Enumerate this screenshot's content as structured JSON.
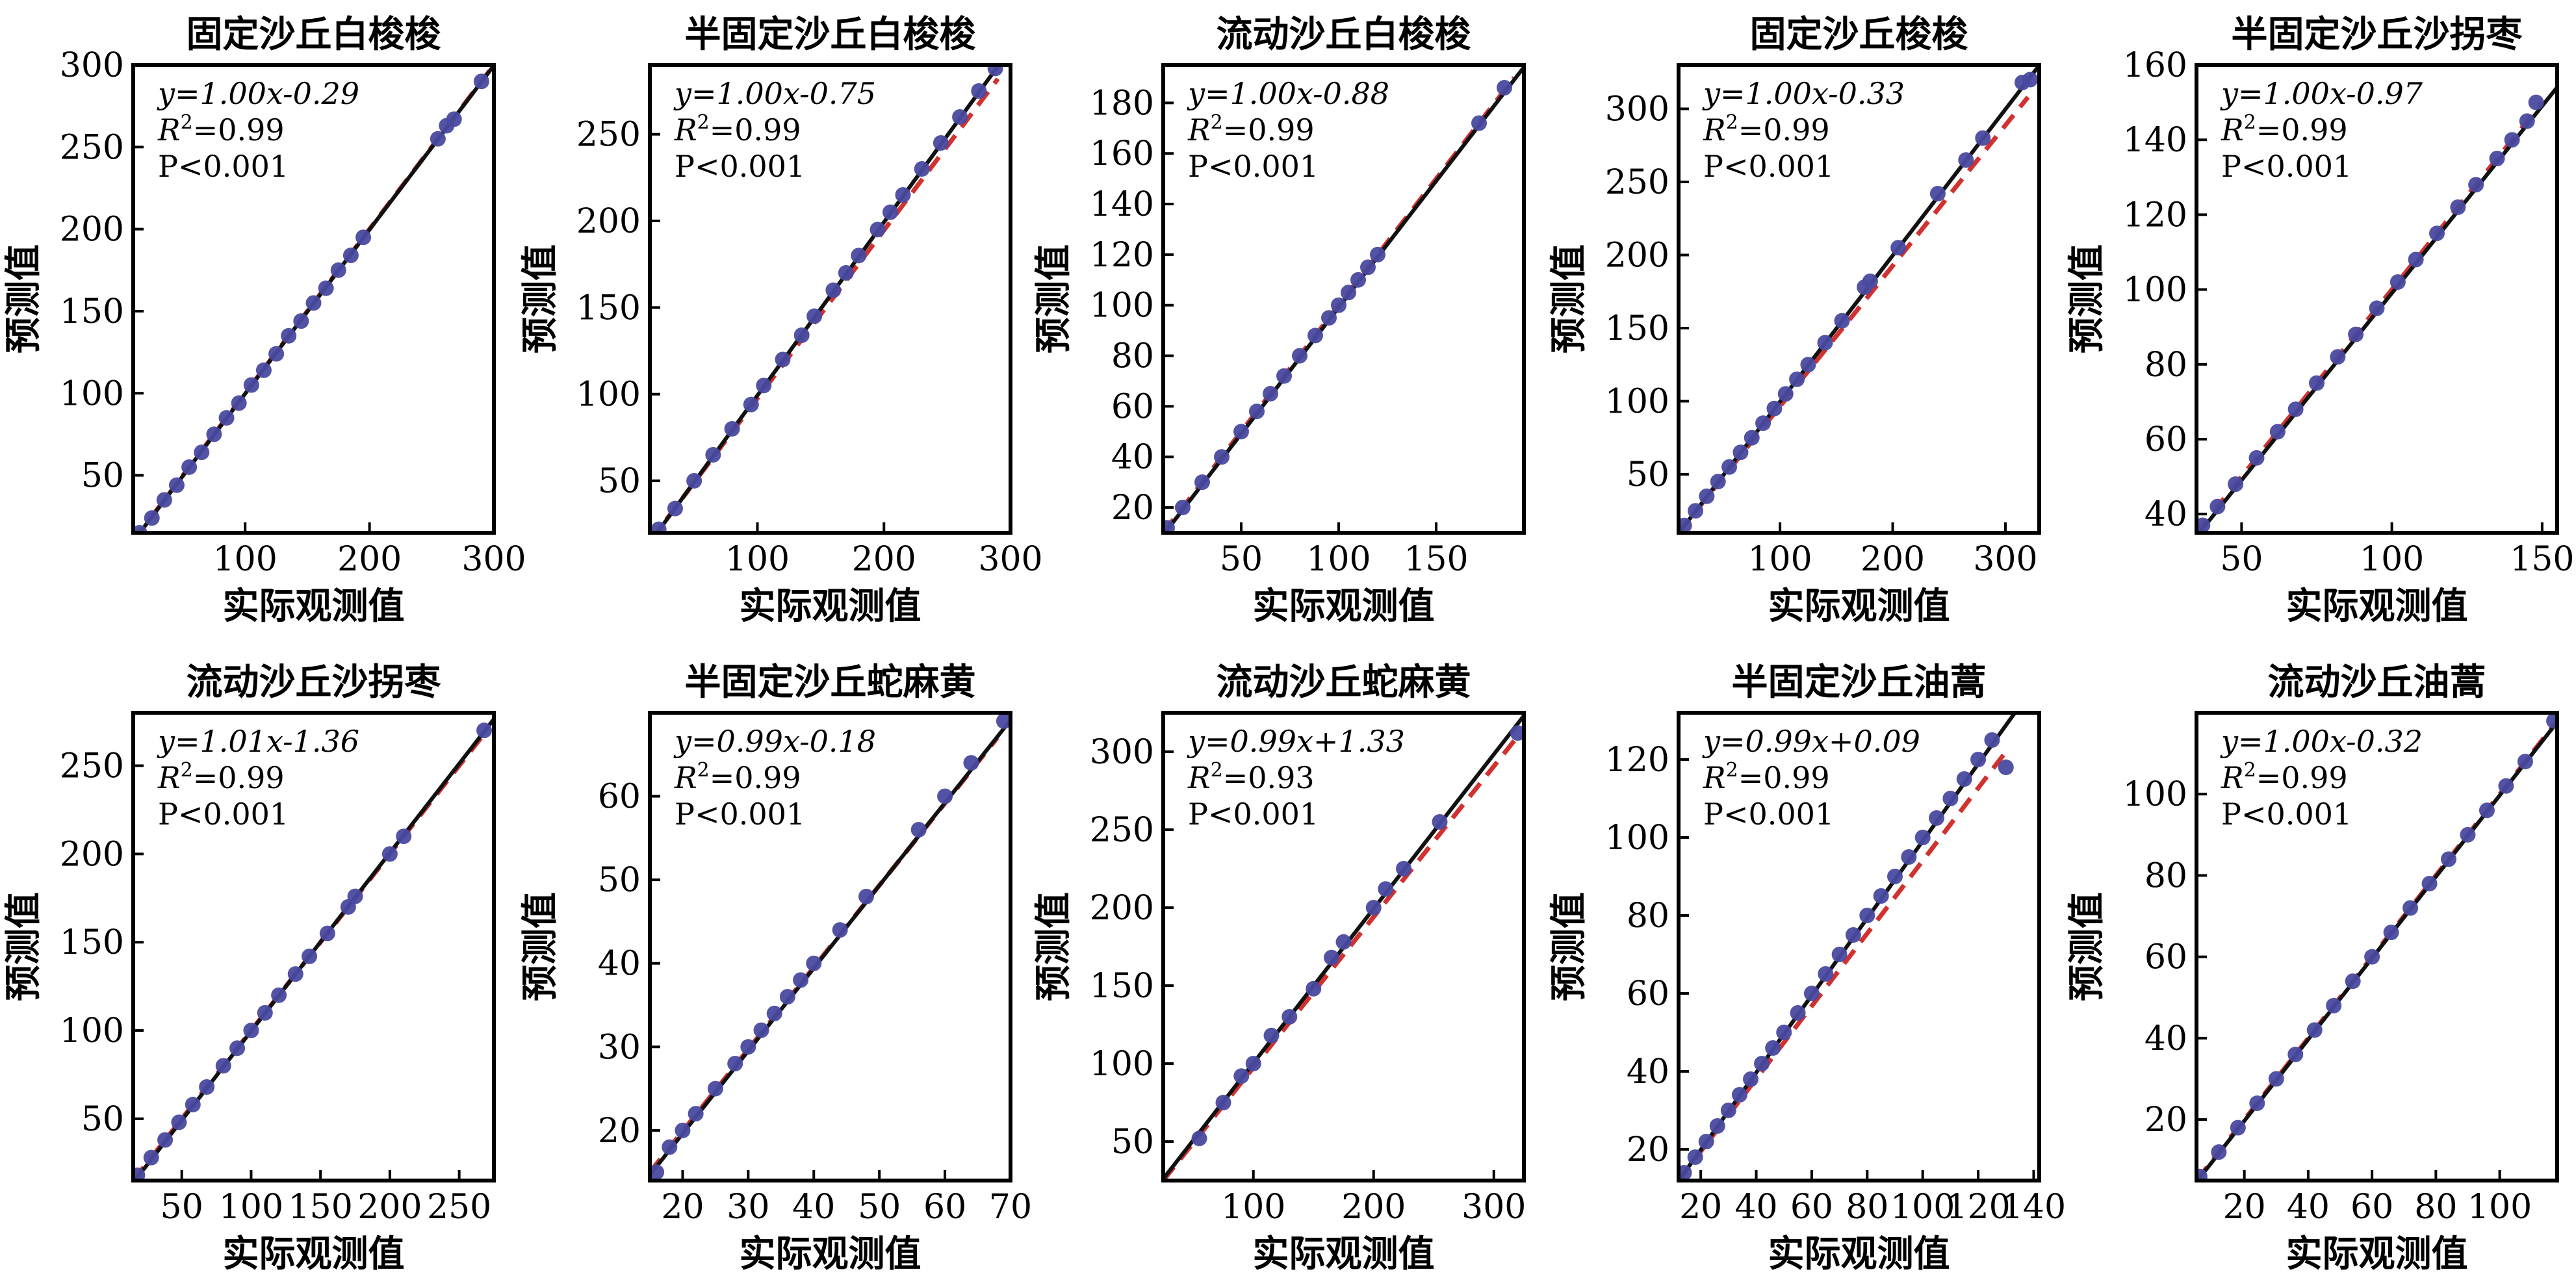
{
  "figure_title": "",
  "chart_data": [
    {
      "type": "scatter",
      "title": "固定沙丘白梭梭",
      "xlabel": "实际观测值",
      "ylabel": "预测值",
      "xlim": [
        10,
        300
      ],
      "ylim": [
        15,
        300
      ],
      "xticks": [
        100,
        200,
        300
      ],
      "yticks": [
        50,
        100,
        150,
        200,
        250,
        300
      ],
      "equation": "y=1.00x-0.29",
      "r2": "0.99",
      "p": "P<0.001",
      "slope": 1.0,
      "intercept": -0.29,
      "ref_line": [
        [
          10,
          10
        ],
        [
          300,
          300
        ]
      ],
      "points": [
        [
          15,
          15
        ],
        [
          25,
          24
        ],
        [
          35,
          35
        ],
        [
          45,
          44
        ],
        [
          55,
          55
        ],
        [
          65,
          64
        ],
        [
          75,
          75
        ],
        [
          85,
          85
        ],
        [
          95,
          94
        ],
        [
          105,
          105
        ],
        [
          115,
          114
        ],
        [
          125,
          124
        ],
        [
          135,
          135
        ],
        [
          145,
          144
        ],
        [
          155,
          155
        ],
        [
          165,
          164
        ],
        [
          175,
          175
        ],
        [
          185,
          184
        ],
        [
          195,
          195
        ],
        [
          255,
          255
        ],
        [
          262,
          263
        ],
        [
          268,
          267
        ],
        [
          290,
          290
        ]
      ]
    },
    {
      "type": "scatter",
      "title": "半固定沙丘白梭梭",
      "xlabel": "实际观测值",
      "ylabel": "预测值",
      "xlim": [
        15,
        300
      ],
      "ylim": [
        20,
        290
      ],
      "xticks": [
        100,
        200,
        300
      ],
      "yticks": [
        50,
        100,
        150,
        200,
        250
      ],
      "equation": "y=1.00x-0.75",
      "r2": "0.99",
      "p": "P<0.001",
      "slope": 1.0,
      "intercept": -0.75,
      "ref_line": [
        [
          15,
          15
        ],
        [
          290,
          282
        ]
      ],
      "points": [
        [
          22,
          22
        ],
        [
          35,
          34
        ],
        [
          50,
          50
        ],
        [
          65,
          65
        ],
        [
          80,
          80
        ],
        [
          95,
          94
        ],
        [
          105,
          105
        ],
        [
          120,
          120
        ],
        [
          135,
          134
        ],
        [
          145,
          145
        ],
        [
          160,
          160
        ],
        [
          170,
          170
        ],
        [
          180,
          180
        ],
        [
          195,
          195
        ],
        [
          205,
          205
        ],
        [
          215,
          215
        ],
        [
          230,
          230
        ],
        [
          245,
          245
        ],
        [
          260,
          260
        ],
        [
          275,
          275
        ],
        [
          288,
          288
        ]
      ]
    },
    {
      "type": "scatter",
      "title": "流动沙丘白梭梭",
      "xlabel": "实际观测值",
      "ylabel": "预测值",
      "xlim": [
        10,
        195
      ],
      "ylim": [
        10,
        195
      ],
      "xticks": [
        50,
        100,
        150
      ],
      "yticks": [
        20,
        40,
        60,
        80,
        100,
        120,
        140,
        160,
        180
      ],
      "equation": "y=1.00x-0.88",
      "r2": "0.99",
      "p": "P<0.001",
      "slope": 1.0,
      "intercept": -0.88,
      "ref_line": [
        [
          10,
          10
        ],
        [
          190,
          190
        ]
      ],
      "points": [
        [
          12,
          12
        ],
        [
          20,
          20
        ],
        [
          30,
          30
        ],
        [
          40,
          40
        ],
        [
          50,
          50
        ],
        [
          58,
          58
        ],
        [
          65,
          65
        ],
        [
          72,
          72
        ],
        [
          80,
          80
        ],
        [
          88,
          88
        ],
        [
          95,
          95
        ],
        [
          100,
          100
        ],
        [
          105,
          105
        ],
        [
          110,
          110
        ],
        [
          115,
          115
        ],
        [
          120,
          120
        ],
        [
          172,
          172
        ],
        [
          185,
          186
        ]
      ]
    },
    {
      "type": "scatter",
      "title": "固定沙丘梭梭",
      "xlabel": "实际观测值",
      "ylabel": "预测值",
      "xlim": [
        10,
        330
      ],
      "ylim": [
        10,
        330
      ],
      "xticks": [
        100,
        200,
        300
      ],
      "yticks": [
        50,
        100,
        150,
        200,
        250,
        300
      ],
      "equation": "y=1.00x-0.33",
      "r2": "0.99",
      "p": "P<0.001",
      "slope": 1.0,
      "intercept": -0.33,
      "ref_line": [
        [
          10,
          10
        ],
        [
          320,
          308
        ]
      ],
      "points": [
        [
          15,
          15
        ],
        [
          25,
          25
        ],
        [
          35,
          35
        ],
        [
          45,
          45
        ],
        [
          55,
          55
        ],
        [
          65,
          65
        ],
        [
          75,
          75
        ],
        [
          85,
          85
        ],
        [
          95,
          95
        ],
        [
          105,
          105
        ],
        [
          115,
          115
        ],
        [
          125,
          125
        ],
        [
          140,
          140
        ],
        [
          155,
          155
        ],
        [
          175,
          178
        ],
        [
          180,
          182
        ],
        [
          205,
          205
        ],
        [
          240,
          242
        ],
        [
          265,
          265
        ],
        [
          280,
          280
        ],
        [
          315,
          318
        ],
        [
          322,
          320
        ]
      ]
    },
    {
      "type": "scatter",
      "title": "半固定沙丘沙拐枣",
      "xlabel": "实际观测值",
      "ylabel": "预测值",
      "xlim": [
        35,
        155
      ],
      "ylim": [
        35,
        160
      ],
      "xticks": [
        50,
        100,
        150
      ],
      "yticks": [
        40,
        60,
        80,
        100,
        120,
        140,
        160
      ],
      "equation": "y=1.00x-0.97",
      "r2": "0.99",
      "p": "P<0.001",
      "slope": 1.0,
      "intercept": -0.97,
      "ref_line": [
        [
          35,
          35
        ],
        [
          150,
          150
        ]
      ],
      "points": [
        [
          37,
          37
        ],
        [
          42,
          42
        ],
        [
          48,
          48
        ],
        [
          55,
          55
        ],
        [
          62,
          62
        ],
        [
          68,
          68
        ],
        [
          75,
          75
        ],
        [
          82,
          82
        ],
        [
          88,
          88
        ],
        [
          95,
          95
        ],
        [
          102,
          102
        ],
        [
          108,
          108
        ],
        [
          115,
          115
        ],
        [
          122,
          122
        ],
        [
          128,
          128
        ],
        [
          135,
          135
        ],
        [
          140,
          140
        ],
        [
          145,
          145
        ],
        [
          148,
          150
        ]
      ]
    },
    {
      "type": "scatter",
      "title": "流动沙丘沙拐枣",
      "xlabel": "实际观测值",
      "ylabel": "预测值",
      "xlim": [
        15,
        275
      ],
      "ylim": [
        15,
        280
      ],
      "xticks": [
        50,
        100,
        150,
        200,
        250
      ],
      "yticks": [
        50,
        100,
        150,
        200,
        250
      ],
      "equation": "y=1.01x-1.36",
      "r2": "0.99",
      "p": "P<0.001",
      "slope": 1.01,
      "intercept": -1.36,
      "ref_line": [
        [
          15,
          15
        ],
        [
          270,
          270
        ]
      ],
      "points": [
        [
          18,
          18
        ],
        [
          28,
          28
        ],
        [
          38,
          38
        ],
        [
          48,
          48
        ],
        [
          58,
          58
        ],
        [
          68,
          68
        ],
        [
          80,
          80
        ],
        [
          90,
          90
        ],
        [
          100,
          100
        ],
        [
          110,
          110
        ],
        [
          120,
          120
        ],
        [
          132,
          132
        ],
        [
          142,
          142
        ],
        [
          155,
          155
        ],
        [
          170,
          170
        ],
        [
          175,
          176
        ],
        [
          200,
          200
        ],
        [
          210,
          210
        ],
        [
          268,
          270
        ]
      ]
    },
    {
      "type": "scatter",
      "title": "半固定沙丘蛇麻黄",
      "xlabel": "实际观测值",
      "ylabel": "预测值",
      "xlim": [
        15,
        70
      ],
      "ylim": [
        14,
        70
      ],
      "xticks": [
        20,
        30,
        40,
        50,
        60,
        70
      ],
      "yticks": [
        20,
        30,
        40,
        50,
        60
      ],
      "equation": "y=0.99x-0.18",
      "r2": "0.99",
      "p": "P<0.001",
      "slope": 0.99,
      "intercept": -0.18,
      "ref_line": [
        [
          15,
          15
        ],
        [
          68,
          67
        ]
      ],
      "points": [
        [
          16,
          15
        ],
        [
          18,
          18
        ],
        [
          20,
          20
        ],
        [
          22,
          22
        ],
        [
          25,
          25
        ],
        [
          28,
          28
        ],
        [
          30,
          30
        ],
        [
          32,
          32
        ],
        [
          34,
          34
        ],
        [
          36,
          36
        ],
        [
          38,
          38
        ],
        [
          40,
          40
        ],
        [
          44,
          44
        ],
        [
          48,
          48
        ],
        [
          56,
          56
        ],
        [
          60,
          60
        ],
        [
          64,
          64
        ],
        [
          69,
          69
        ]
      ]
    },
    {
      "type": "scatter",
      "title": "流动沙丘蛇麻黄",
      "xlabel": "实际观测值",
      "ylabel": "预测值",
      "xlim": [
        25,
        325
      ],
      "ylim": [
        25,
        325
      ],
      "xticks": [
        100,
        200,
        300
      ],
      "yticks": [
        50,
        100,
        150,
        200,
        250,
        300
      ],
      "equation": "y=0.99x+1.33",
      "r2": "0.93",
      "p": "P<0.001",
      "slope": 0.99,
      "intercept": 1.33,
      "ref_line": [
        [
          25,
          25
        ],
        [
          320,
          310
        ]
      ],
      "points": [
        [
          55,
          52
        ],
        [
          75,
          75
        ],
        [
          90,
          92
        ],
        [
          100,
          100
        ],
        [
          115,
          118
        ],
        [
          130,
          130
        ],
        [
          150,
          148
        ],
        [
          165,
          168
        ],
        [
          175,
          178
        ],
        [
          200,
          200
        ],
        [
          210,
          212
        ],
        [
          225,
          225
        ],
        [
          255,
          255
        ],
        [
          320,
          312
        ]
      ]
    },
    {
      "type": "scatter",
      "title": "半固定沙丘油蒿",
      "xlabel": "实际观测值",
      "ylabel": "预测值",
      "xlim": [
        12,
        142
      ],
      "ylim": [
        12,
        132
      ],
      "xticks": [
        20,
        40,
        60,
        80,
        100,
        120,
        140
      ],
      "yticks": [
        20,
        40,
        60,
        80,
        100,
        120
      ],
      "equation": "y=0.99x+0.09",
      "r2": "0.99",
      "p": "P<0.001",
      "slope": 0.99,
      "intercept": 0.09,
      "ref_line": [
        [
          12,
          12
        ],
        [
          130,
          122
        ]
      ],
      "points": [
        [
          14,
          14
        ],
        [
          18,
          18
        ],
        [
          22,
          22
        ],
        [
          26,
          26
        ],
        [
          30,
          30
        ],
        [
          34,
          34
        ],
        [
          38,
          38
        ],
        [
          42,
          42
        ],
        [
          46,
          46
        ],
        [
          50,
          50
        ],
        [
          55,
          55
        ],
        [
          60,
          60
        ],
        [
          65,
          65
        ],
        [
          70,
          70
        ],
        [
          75,
          75
        ],
        [
          80,
          80
        ],
        [
          85,
          85
        ],
        [
          90,
          90
        ],
        [
          95,
          95
        ],
        [
          100,
          100
        ],
        [
          105,
          105
        ],
        [
          110,
          110
        ],
        [
          115,
          115
        ],
        [
          120,
          120
        ],
        [
          125,
          125
        ],
        [
          130,
          118
        ]
      ]
    },
    {
      "type": "scatter",
      "title": "流动沙丘油蒿",
      "xlabel": "实际观测值",
      "ylabel": "预测值",
      "xlim": [
        5,
        118
      ],
      "ylim": [
        5,
        120
      ],
      "xticks": [
        20,
        40,
        60,
        80,
        100
      ],
      "yticks": [
        20,
        40,
        60,
        80,
        100
      ],
      "equation": "y=1.00x-0.32",
      "r2": "0.99",
      "p": "P<0.001",
      "slope": 1.0,
      "intercept": -0.32,
      "ref_line": [
        [
          5,
          5
        ],
        [
          118,
          118
        ]
      ],
      "points": [
        [
          6,
          6
        ],
        [
          12,
          12
        ],
        [
          18,
          18
        ],
        [
          24,
          24
        ],
        [
          30,
          30
        ],
        [
          36,
          36
        ],
        [
          42,
          42
        ],
        [
          48,
          48
        ],
        [
          54,
          54
        ],
        [
          60,
          60
        ],
        [
          66,
          66
        ],
        [
          72,
          72
        ],
        [
          78,
          78
        ],
        [
          84,
          84
        ],
        [
          90,
          90
        ],
        [
          96,
          96
        ],
        [
          102,
          102
        ],
        [
          108,
          108
        ],
        [
          117,
          118
        ]
      ]
    }
  ]
}
